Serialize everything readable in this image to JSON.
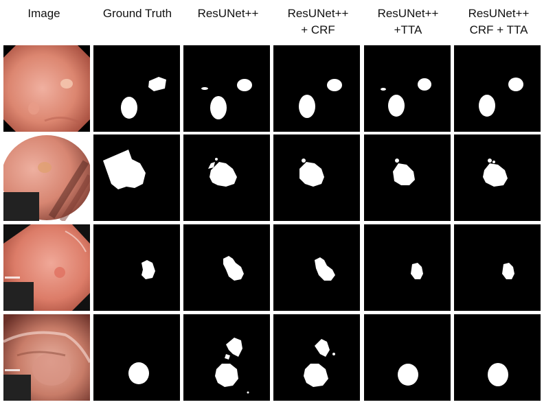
{
  "headers": [
    [
      "Image"
    ],
    [
      "Ground Truth"
    ],
    [
      "ResUNet++"
    ],
    [
      "ResUNet++",
      "+ CRF"
    ],
    [
      "ResUNet++",
      "+TTA"
    ],
    [
      "ResUNet++",
      "CRF + TTA"
    ]
  ],
  "colors": {
    "background": "#ffffff",
    "mask_bg": "#000000",
    "mask_fg": "#ffffff",
    "tissue_light": "#e8a898",
    "tissue_mid": "#d8806c",
    "tissue_dark": "#b05a48"
  },
  "rows": 4,
  "columns": 6
}
